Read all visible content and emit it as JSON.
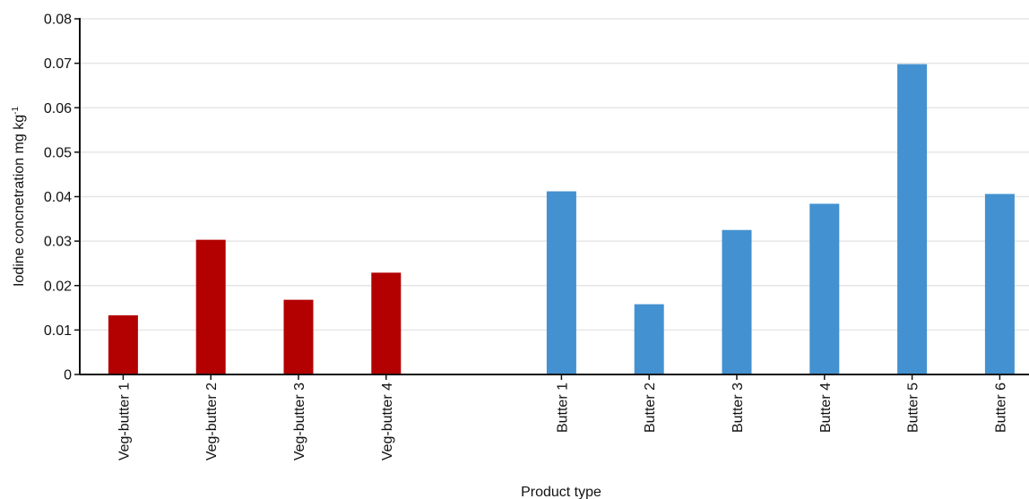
{
  "chart_data": {
    "type": "bar",
    "categories": [
      "Veg-butter 1",
      "Veg-butter 2",
      "Veg-butter 3",
      "Veg-butter 4",
      "Butter 1",
      "Butter 2",
      "Butter 3",
      "Butter 4",
      "Butter 5",
      "Butter 6"
    ],
    "series": [
      {
        "values": [
          0.0133,
          0.0303,
          0.0168,
          0.0229,
          null,
          null,
          null,
          null,
          null,
          null
        ],
        "color": "#b30000"
      },
      {
        "values": [
          null,
          null,
          null,
          null,
          0.0412,
          0.0158,
          0.0325,
          0.0384,
          0.0698,
          0.0406
        ],
        "color": "#4391d0"
      }
    ],
    "title": "",
    "xlabel": "Product type",
    "ylabel": {
      "text": "Iodine concnetration mg kg",
      "superscript": "-1"
    },
    "ylim": [
      0,
      0.08
    ],
    "yticks": [
      "0",
      "0.01",
      "0.02",
      "0.03",
      "0.04",
      "0.05",
      "0.06",
      "0.07",
      "0.08"
    ],
    "grid": "horizontal",
    "gridColor": "#e6e6e6",
    "axisColor": "#111111",
    "legend": "none"
  }
}
